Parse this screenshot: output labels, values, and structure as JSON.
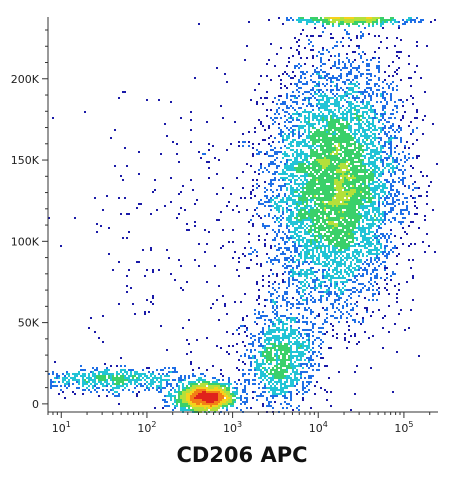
{
  "chart_data": {
    "type": "scatter",
    "style": "flow-cytometry-pseudocolor-density",
    "title": "",
    "xlabel": "CD206 APC",
    "ylabel": "",
    "x_scale": "log",
    "y_scale": "linear",
    "xlim": [
      7,
      250000
    ],
    "ylim": [
      -5000,
      238000
    ],
    "x_ticks": [
      {
        "value": 10,
        "label_base": "10",
        "label_exp": "1"
      },
      {
        "value": 100,
        "label_base": "10",
        "label_exp": "2"
      },
      {
        "value": 1000,
        "label_base": "10",
        "label_exp": "3"
      },
      {
        "value": 10000,
        "label_base": "10",
        "label_exp": "4"
      },
      {
        "value": 100000,
        "label_base": "10",
        "label_exp": "5"
      }
    ],
    "y_ticks": [
      {
        "value": 0,
        "label": "0"
      },
      {
        "value": 50000,
        "label": "50K"
      },
      {
        "value": 100000,
        "label": "100K"
      },
      {
        "value": 150000,
        "label": "150K"
      },
      {
        "value": 200000,
        "label": "200K"
      }
    ],
    "grid": false,
    "colormap": [
      "#1a1aa8",
      "#1f6fe6",
      "#22c4d6",
      "#3ad06a",
      "#b4e03a",
      "#f6d21c",
      "#f37f16",
      "#e0221c"
    ],
    "populations": [
      {
        "name_hidden": "",
        "x_log_center": 4.2,
        "x_log_sd": 0.38,
        "y_center": 135000,
        "y_sd": 38000,
        "weight": 0.62,
        "rotation_deg": 8
      },
      {
        "name_hidden": "",
        "x_log_center": 2.7,
        "x_log_sd": 0.18,
        "y_center": 4000,
        "y_sd": 4500,
        "weight": 0.14,
        "rotation_deg": 0
      },
      {
        "name_hidden": "",
        "x_log_center": 3.55,
        "x_log_sd": 0.2,
        "y_center": 28000,
        "y_sd": 14000,
        "weight": 0.1,
        "rotation_deg": 0
      },
      {
        "name_hidden": "",
        "x_log_center": 1.6,
        "x_log_sd": 0.5,
        "y_center": 15000,
        "y_sd": 3500,
        "weight": 0.06,
        "rotation_deg": 0
      },
      {
        "name_hidden": "",
        "x_log_center": 2.8,
        "x_log_sd": 0.9,
        "y_center": 90000,
        "y_sd": 60000,
        "weight": 0.04,
        "rotation_deg": 0
      },
      {
        "name_hidden": "",
        "x_log_center": 4.4,
        "x_log_sd": 0.35,
        "y_center": 236000,
        "y_sd": 1200,
        "weight": 0.04,
        "rotation_deg": 0
      }
    ]
  }
}
